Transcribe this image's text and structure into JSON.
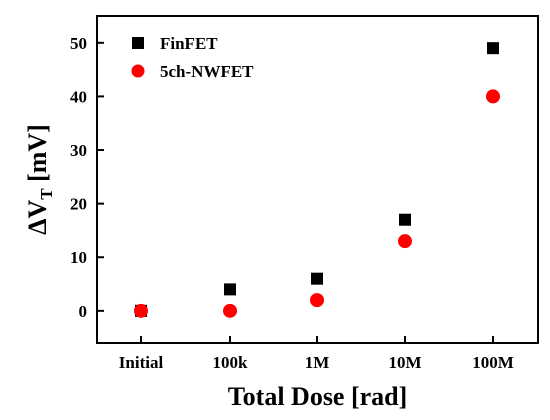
{
  "chart_data": {
    "type": "scatter",
    "categories": [
      "Initial",
      "100k",
      "1M",
      "10M",
      "100M"
    ],
    "series": [
      {
        "name": "FinFET",
        "marker": "square",
        "color": "#000000",
        "values": [
          0,
          4,
          6,
          17,
          49
        ]
      },
      {
        "name": "5ch-NWFET",
        "marker": "circle",
        "color": "#ff0000",
        "values": [
          0,
          0,
          2,
          13,
          40
        ]
      }
    ],
    "xlabel": "Total Dose [rad]",
    "ylabel": {
      "main": "ΔV",
      "subscript": "T",
      "unit": " [mV]"
    },
    "ylim": [
      -6,
      55
    ],
    "yticks": [
      0,
      10,
      20,
      30,
      40,
      50
    ],
    "grid": false,
    "legend_position": "top-left"
  }
}
